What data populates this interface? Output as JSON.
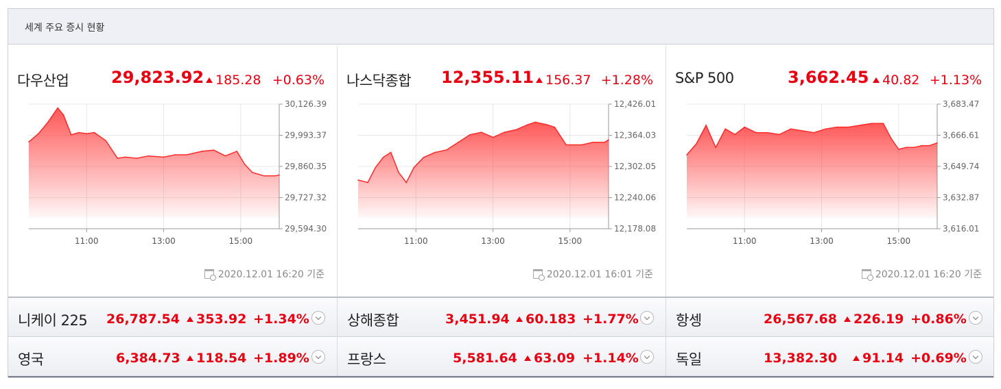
{
  "header": {
    "title": "세계 주요 증시 현황"
  },
  "panels": [
    {
      "name": "다우산업",
      "value": "29,823.92",
      "change": "185.28",
      "pct": "+0.63%",
      "timestamp": "2020.12.01 16:20 기준"
    },
    {
      "name": "나스닥종합",
      "value": "12,355.11",
      "change": "156.37",
      "pct": "+1.28%",
      "timestamp": "2020.12.01 16:01 기준"
    },
    {
      "name": "S&P 500",
      "value": "3,662.45",
      "change": "40.82",
      "pct": "+1.13%",
      "timestamp": "2020.12.01 16:20 기준"
    }
  ],
  "rows": [
    [
      {
        "name": "니케이 225",
        "value": "26,787.54",
        "change": "353.92",
        "pct": "+1.34%"
      },
      {
        "name": "상해종합",
        "value": "3,451.94",
        "change": "60.183",
        "pct": "+1.77%"
      },
      {
        "name": "항셍",
        "value": "26,567.68",
        "change": "226.19",
        "pct": "+0.86%"
      }
    ],
    [
      {
        "name": "영국",
        "value": "6,384.73",
        "change": "118.54",
        "pct": "+1.89%"
      },
      {
        "name": "프랑스",
        "value": "5,581.64",
        "change": "63.09",
        "pct": "+1.14%"
      },
      {
        "name": "독일",
        "value": "13,382.30",
        "change": "91.14",
        "pct": "+0.69%"
      }
    ]
  ],
  "colors": {
    "up": "#e60012",
    "line": "#ff3b3b",
    "grid": "#e3e3e3"
  },
  "chart_data": [
    {
      "type": "area",
      "series": [
        {
          "x": [
            9.5,
            9.75,
            10.0,
            10.25,
            10.4,
            10.6,
            10.8,
            11.0,
            11.2,
            11.5,
            11.8,
            12.0,
            12.3,
            12.6,
            13.0,
            13.3,
            13.6,
            14.0,
            14.3,
            14.6,
            14.9,
            15.1,
            15.3,
            15.6,
            15.9,
            16.0
          ],
          "y": [
            29965,
            30000,
            30050,
            30110,
            30080,
            29995,
            30005,
            30000,
            30005,
            29970,
            29895,
            29900,
            29895,
            29905,
            29900,
            29910,
            29910,
            29925,
            29930,
            29905,
            29925,
            29870,
            29835,
            29820,
            29820,
            29823.92
          ]
        }
      ],
      "xlim": [
        9.5,
        16.0
      ],
      "ylim": [
        29594.3,
        30126.39
      ],
      "yticks": [
        "30,126.39",
        "29,993.37",
        "29,860.35",
        "29,727.32",
        "29,594.30"
      ],
      "xticks": [
        11,
        13,
        15
      ],
      "xticklabels": [
        "11:00",
        "13:00",
        "15:00"
      ],
      "grid": true
    },
    {
      "type": "area",
      "series": [
        {
          "x": [
            9.5,
            9.75,
            9.95,
            10.15,
            10.35,
            10.55,
            10.75,
            10.95,
            11.2,
            11.5,
            11.8,
            12.1,
            12.4,
            12.7,
            13.0,
            13.3,
            13.6,
            13.9,
            14.1,
            14.4,
            14.6,
            14.9,
            15.1,
            15.3,
            15.6,
            15.9,
            16.0
          ],
          "y": [
            12275,
            12270,
            12300,
            12320,
            12330,
            12290,
            12270,
            12300,
            12320,
            12330,
            12335,
            12350,
            12365,
            12370,
            12360,
            12370,
            12375,
            12385,
            12390,
            12385,
            12380,
            12345,
            12345,
            12345,
            12350,
            12350,
            12355.11
          ]
        }
      ],
      "xlim": [
        9.5,
        16.0
      ],
      "ylim": [
        12178.08,
        12426.01
      ],
      "yticks": [
        "12,426.01",
        "12,364.03",
        "12,302.05",
        "12,240.06",
        "12,178.08"
      ],
      "xticks": [
        11,
        13,
        15
      ],
      "xticklabels": [
        "11:00",
        "13:00",
        "15:00"
      ],
      "grid": true
    },
    {
      "type": "area",
      "series": [
        {
          "x": [
            9.5,
            9.75,
            10.0,
            10.25,
            10.5,
            10.75,
            11.0,
            11.3,
            11.6,
            11.9,
            12.2,
            12.5,
            12.8,
            13.1,
            13.4,
            13.7,
            14.0,
            14.3,
            14.6,
            14.8,
            15.0,
            15.2,
            15.4,
            15.6,
            15.8,
            16.0
          ],
          "y": [
            3656,
            3662,
            3672,
            3660,
            3670,
            3667,
            3671,
            3668,
            3668,
            3667,
            3670,
            3669,
            3668,
            3670,
            3671,
            3671,
            3672,
            3673,
            3673,
            3665,
            3659,
            3660,
            3660,
            3661,
            3661,
            3662.45
          ]
        }
      ],
      "xlim": [
        9.5,
        16.0
      ],
      "ylim": [
        3616.01,
        3683.47
      ],
      "yticks": [
        "3,683.47",
        "3,666.61",
        "3,649.74",
        "3,632.87",
        "3,616.01"
      ],
      "xticks": [
        11,
        13,
        15
      ],
      "xticklabels": [
        "11:00",
        "13:00",
        "15:00"
      ],
      "grid": true
    }
  ]
}
